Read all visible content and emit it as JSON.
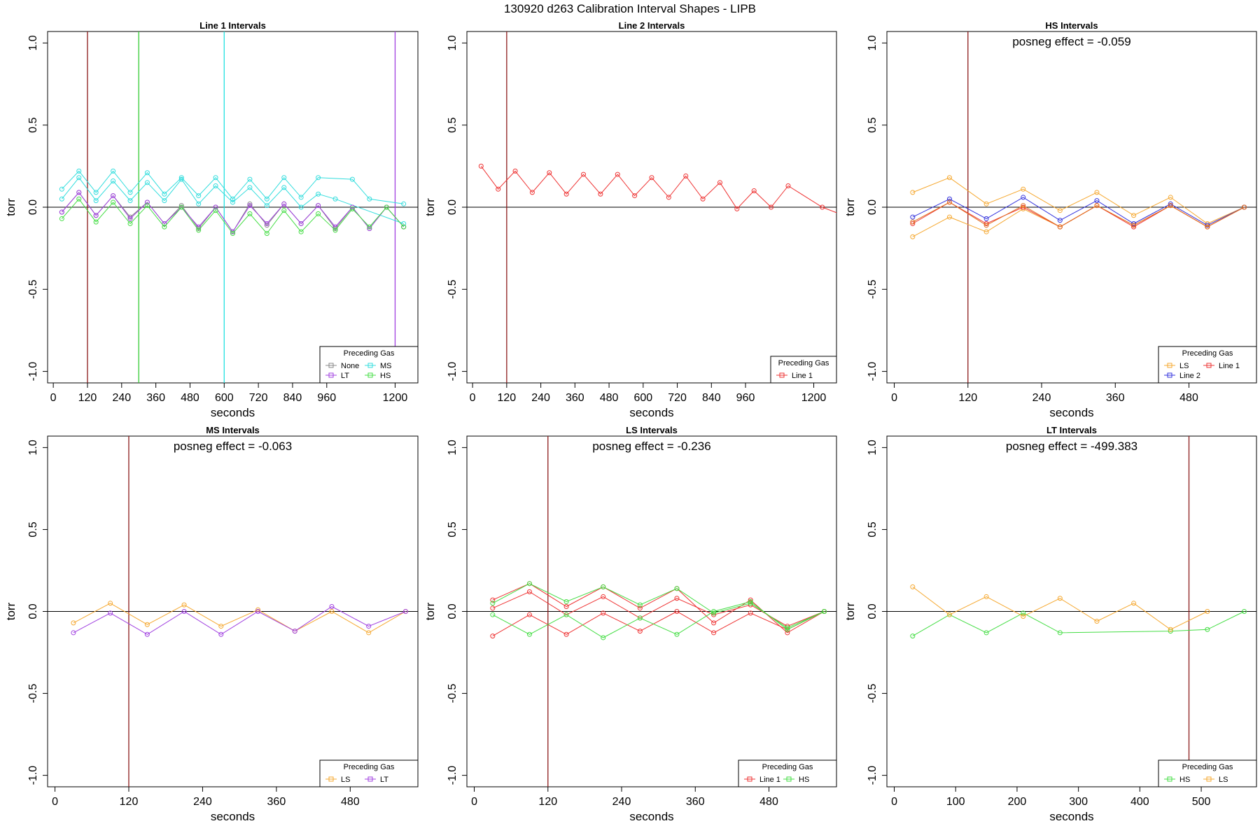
{
  "title": "130920   d263   Calibration Interval Shapes - LIPB",
  "chart_data": [
    {
      "type": "line",
      "title": "Line 1 Intervals",
      "xlabel": "seconds",
      "ylabel": "torr",
      "xlim": [
        -20,
        1280
      ],
      "ylim": [
        -1.07,
        1.07
      ],
      "xticks": [
        0,
        120,
        240,
        360,
        480,
        600,
        720,
        840,
        960,
        1200
      ],
      "yticks": [
        -1.0,
        -0.5,
        0.0,
        0.5,
        1.0
      ],
      "hline": 0,
      "vlines": [
        {
          "x": 120,
          "color": "#8b1a1a"
        },
        {
          "x": 300,
          "color": "#33cc33"
        },
        {
          "x": 600,
          "color": "#22e0e0"
        },
        {
          "x": 1200,
          "color": "#a040e0"
        }
      ],
      "annotation": "",
      "legend": {
        "title": "Preceding Gas",
        "position": "bottom-right",
        "columns": 2
      },
      "series": [
        {
          "name": "None",
          "color": "#888888",
          "x": [
            30,
            90,
            150,
            210,
            270,
            330,
            390,
            450,
            510,
            570,
            630,
            690,
            750,
            810,
            870,
            930,
            990,
            1050,
            1110,
            1170,
            1230
          ],
          "y": [
            -0.03,
            0.09,
            -0.05,
            0.07,
            -0.06,
            0.03,
            -0.1,
            0.01,
            -0.13,
            0.0,
            -0.15,
            0.02,
            -0.11,
            0.02,
            -0.1,
            0.01,
            -0.13,
            0.0,
            -0.13,
            0.0,
            -0.12
          ]
        },
        {
          "name": "MS",
          "color": "#33dddd",
          "x": [
            30,
            90,
            150,
            210,
            270,
            330,
            390,
            450,
            510,
            570,
            630,
            690,
            750,
            810,
            870,
            930,
            1050,
            1110,
            1230
          ],
          "y": [
            0.11,
            0.22,
            0.09,
            0.22,
            0.09,
            0.21,
            0.08,
            0.18,
            0.07,
            0.18,
            0.05,
            0.17,
            0.05,
            0.18,
            0.06,
            0.18,
            0.17,
            0.05,
            0.02
          ]
        },
        {
          "name": "MS",
          "color": "#33dddd",
          "x": [
            30,
            90,
            150,
            210,
            270,
            330,
            390,
            450,
            510,
            570,
            630,
            690,
            750,
            810,
            870,
            930,
            990,
            1230
          ],
          "y": [
            0.05,
            0.18,
            0.04,
            0.16,
            0.04,
            0.15,
            0.04,
            0.17,
            0.02,
            0.13,
            0.03,
            0.12,
            0.01,
            0.12,
            0.0,
            0.08,
            0.05,
            -0.1
          ]
        },
        {
          "name": "LT",
          "color": "#a040e0",
          "x": [
            30,
            90,
            150,
            210,
            270,
            330,
            390,
            450,
            510,
            570,
            630,
            690,
            750,
            810,
            870,
            930,
            990,
            1050,
            1110,
            1170,
            1230
          ],
          "y": [
            -0.03,
            0.09,
            -0.05,
            0.07,
            -0.07,
            0.03,
            -0.1,
            0.0,
            -0.12,
            0.0,
            -0.15,
            0.01,
            -0.1,
            0.02,
            -0.1,
            0.01,
            -0.12,
            0.0,
            -0.13,
            0.0,
            -0.12
          ]
        },
        {
          "name": "HS",
          "color": "#44dd44",
          "x": [
            30,
            90,
            150,
            210,
            270,
            330,
            390,
            450,
            510,
            570,
            630,
            690,
            750,
            810,
            870,
            930,
            990,
            1050,
            1110,
            1170,
            1230
          ],
          "y": [
            -0.07,
            0.05,
            -0.09,
            0.03,
            -0.1,
            0.01,
            -0.12,
            0.0,
            -0.14,
            -0.02,
            -0.16,
            -0.04,
            -0.16,
            -0.02,
            -0.15,
            -0.04,
            -0.14,
            -0.01,
            -0.12,
            0.0,
            -0.12
          ]
        }
      ]
    },
    {
      "type": "line",
      "title": "Line 2 Intervals",
      "xlabel": "seconds",
      "ylabel": "torr",
      "xlim": [
        -20,
        1280
      ],
      "ylim": [
        -1.07,
        1.07
      ],
      "xticks": [
        0,
        120,
        240,
        360,
        480,
        600,
        720,
        840,
        960,
        1200
      ],
      "yticks": [
        -1.0,
        -0.5,
        0.0,
        0.5,
        1.0
      ],
      "hline": 0,
      "vlines": [
        {
          "x": 120,
          "color": "#8b1a1a"
        }
      ],
      "annotation": "",
      "legend": {
        "title": "Preceding Gas",
        "position": "bottom-right",
        "columns": 1
      },
      "series": [
        {
          "name": "Line 1",
          "color": "#ee3333",
          "x": [
            30,
            90,
            150,
            210,
            270,
            330,
            390,
            450,
            510,
            570,
            630,
            690,
            750,
            810,
            870,
            930,
            990,
            1050,
            1110,
            1230,
            1290
          ],
          "y": [
            0.25,
            0.11,
            0.22,
            0.09,
            0.21,
            0.08,
            0.2,
            0.08,
            0.2,
            0.07,
            0.18,
            0.06,
            0.19,
            0.05,
            0.15,
            -0.01,
            0.1,
            0.0,
            0.13,
            0.0,
            -0.04
          ]
        }
      ]
    },
    {
      "type": "line",
      "title": "HS Intervals",
      "xlabel": "seconds",
      "ylabel": "torr",
      "xlim": [
        -12,
        590
      ],
      "ylim": [
        -1.07,
        1.07
      ],
      "xticks": [
        0,
        120,
        240,
        360,
        480
      ],
      "yticks": [
        -1.0,
        -0.5,
        0.0,
        0.5,
        1.0
      ],
      "hline": 0,
      "vlines": [
        {
          "x": 120,
          "color": "#8b1a1a"
        }
      ],
      "annotation": "posneg effect = -0.059",
      "legend": {
        "title": "Preceding Gas",
        "position": "bottom-right",
        "columns": 2
      },
      "series": [
        {
          "name": "LS",
          "color": "#f5a830",
          "x": [
            30,
            90,
            150,
            210,
            270,
            330,
            390,
            450,
            510,
            570
          ],
          "y": [
            0.09,
            0.18,
            0.02,
            0.11,
            -0.02,
            0.09,
            -0.05,
            0.06,
            -0.1,
            0.0
          ]
        },
        {
          "name": "LS",
          "color": "#f5a830",
          "x": [
            30,
            90,
            150,
            210,
            270,
            330,
            390,
            450,
            510,
            570
          ],
          "y": [
            -0.18,
            -0.06,
            -0.15,
            -0.01,
            -0.12,
            0.01,
            -0.11,
            0.01,
            -0.12,
            0.0
          ]
        },
        {
          "name": "Line 1",
          "color": "#ee3333",
          "x": [
            30,
            90,
            150,
            210,
            270,
            330,
            390,
            450,
            510,
            570
          ],
          "y": [
            -0.1,
            0.03,
            -0.1,
            0.0,
            -0.12,
            0.01,
            -0.12,
            0.01,
            -0.12,
            0.0
          ]
        },
        {
          "name": "Line 2",
          "color": "#3333dd",
          "x": [
            30,
            90,
            150,
            210,
            270,
            330,
            390,
            450,
            510,
            570
          ],
          "y": [
            -0.06,
            0.05,
            -0.07,
            0.06,
            -0.08,
            0.04,
            -0.1,
            0.02,
            -0.11,
            0.0
          ]
        },
        {
          "name": "",
          "color": "#e07020",
          "x": [
            30,
            90,
            150,
            210,
            270,
            330,
            390,
            450,
            510,
            570
          ],
          "y": [
            -0.09,
            0.03,
            -0.11,
            0.01,
            -0.12,
            0.01,
            -0.11,
            0.01,
            -0.12,
            0.0
          ]
        }
      ]
    },
    {
      "type": "line",
      "title": "MS Intervals",
      "xlabel": "seconds",
      "ylabel": "torr",
      "xlim": [
        -12,
        590
      ],
      "ylim": [
        -1.07,
        1.07
      ],
      "xticks": [
        0,
        120,
        240,
        360,
        480
      ],
      "yticks": [
        -1.0,
        -0.5,
        0.0,
        0.5,
        1.0
      ],
      "hline": 0,
      "vlines": [
        {
          "x": 120,
          "color": "#8b1a1a"
        }
      ],
      "annotation": "posneg effect = -0.063",
      "legend": {
        "title": "Preceding Gas",
        "position": "bottom-right",
        "columns": 2
      },
      "series": [
        {
          "name": "LS",
          "color": "#f5a830",
          "x": [
            30,
            90,
            150,
            210,
            270,
            330,
            390,
            450,
            510,
            570
          ],
          "y": [
            -0.07,
            0.05,
            -0.08,
            0.04,
            -0.09,
            0.01,
            -0.12,
            0.0,
            -0.13,
            0.0
          ]
        },
        {
          "name": "LT",
          "color": "#a040e0",
          "x": [
            30,
            90,
            150,
            210,
            270,
            330,
            390,
            450,
            510,
            570
          ],
          "y": [
            -0.13,
            -0.01,
            -0.14,
            0.0,
            -0.14,
            0.0,
            -0.12,
            0.03,
            -0.09,
            0.0
          ]
        }
      ]
    },
    {
      "type": "line",
      "title": "LS Intervals",
      "xlabel": "seconds",
      "ylabel": "torr",
      "xlim": [
        -12,
        590
      ],
      "ylim": [
        -1.07,
        1.07
      ],
      "xticks": [
        0,
        120,
        240,
        360,
        480
      ],
      "yticks": [
        -1.0,
        -0.5,
        0.0,
        0.5,
        1.0
      ],
      "hline": 0,
      "vlines": [
        {
          "x": 120,
          "color": "#8b1a1a"
        }
      ],
      "annotation": "posneg effect = -0.236",
      "legend": {
        "title": "Preceding Gas",
        "position": "bottom-right",
        "columns": 2
      },
      "series": [
        {
          "name": "Line 1",
          "color": "#ee3333",
          "x": [
            30,
            90,
            150,
            210,
            270,
            330,
            390,
            450,
            510,
            570
          ],
          "y": [
            0.07,
            0.17,
            0.03,
            0.15,
            0.02,
            0.14,
            -0.07,
            0.07,
            -0.13,
            0.0
          ]
        },
        {
          "name": "Line 1",
          "color": "#ee3333",
          "x": [
            30,
            90,
            150,
            210,
            270,
            330,
            390,
            450,
            510,
            570
          ],
          "y": [
            0.02,
            0.12,
            -0.02,
            0.09,
            -0.04,
            0.08,
            -0.02,
            0.04,
            -0.09,
            0.0
          ]
        },
        {
          "name": "Line 1",
          "color": "#ee3333",
          "x": [
            30,
            90,
            150,
            210,
            270,
            330,
            390,
            450,
            510,
            570
          ],
          "y": [
            -0.15,
            -0.02,
            -0.14,
            -0.01,
            -0.12,
            0.0,
            -0.13,
            -0.01,
            -0.11,
            0.0
          ]
        },
        {
          "name": "HS",
          "color": "#44dd44",
          "x": [
            30,
            90,
            150,
            210,
            270,
            330,
            390,
            450,
            510,
            570
          ],
          "y": [
            0.05,
            0.17,
            0.06,
            0.15,
            0.04,
            0.14,
            -0.01,
            0.05,
            -0.1,
            0.0
          ]
        },
        {
          "name": "HS",
          "color": "#44dd44",
          "x": [
            30,
            90,
            150,
            210,
            270,
            330,
            390,
            450,
            510,
            570
          ],
          "y": [
            -0.02,
            -0.14,
            -0.02,
            -0.16,
            -0.04,
            -0.14,
            0.0,
            0.06,
            -0.11,
            0.0
          ]
        }
      ]
    },
    {
      "type": "line",
      "title": "LT Intervals",
      "xlabel": "seconds",
      "ylabel": "torr",
      "xlim": [
        -12,
        590
      ],
      "ylim": [
        -1.07,
        1.07
      ],
      "xticks": [
        0,
        100,
        200,
        300,
        400,
        500
      ],
      "yticks": [
        -1.0,
        -0.5,
        0.0,
        0.5,
        1.0
      ],
      "hline": 0,
      "vlines": [
        {
          "x": 480,
          "color": "#8b1a1a"
        }
      ],
      "annotation": "posneg effect = -499.383",
      "legend": {
        "title": "Preceding Gas",
        "position": "bottom-right",
        "columns": 2
      },
      "series": [
        {
          "name": "HS",
          "color": "#44dd44",
          "x": [
            30,
            90,
            150,
            210,
            270,
            450,
            510,
            570
          ],
          "y": [
            -0.15,
            -0.02,
            -0.13,
            -0.01,
            -0.13,
            -0.12,
            -0.11,
            0.0
          ]
        },
        {
          "name": "LS",
          "color": "#f5a830",
          "x": [
            30,
            90,
            150,
            210,
            270,
            330,
            390,
            450,
            510
          ],
          "y": [
            0.15,
            -0.02,
            0.09,
            -0.03,
            0.08,
            -0.06,
            0.05,
            -0.11,
            0.0
          ]
        }
      ]
    }
  ]
}
